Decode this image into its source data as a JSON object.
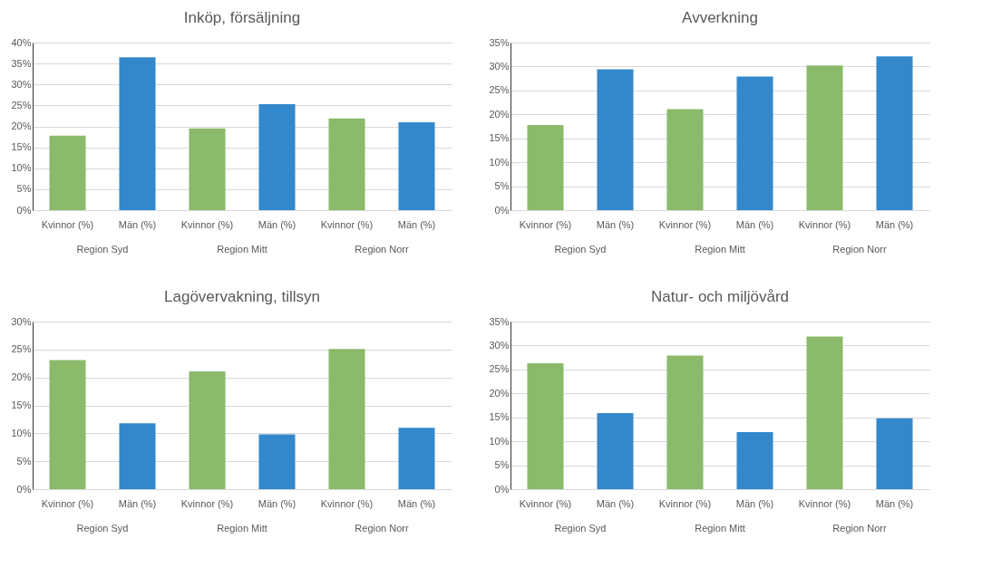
{
  "chart_data": [
    {
      "type": "bar",
      "title": "Inköp, försäljning",
      "categories": [
        "Kvinnor (%)",
        "Män (%)",
        "Kvinnor (%)",
        "Män (%)",
        "Kvinnor (%)",
        "Män (%)"
      ],
      "values": [
        17.8,
        36.5,
        19.5,
        25.3,
        21.9,
        21.0
      ],
      "colors": [
        "#8aba6a",
        "#3388cc",
        "#8aba6a",
        "#3388cc",
        "#8aba6a",
        "#3388cc"
      ],
      "ylim": [
        0,
        40
      ],
      "yticks": [
        {
          "value": 0,
          "label": "0%"
        },
        {
          "value": 5,
          "label": "5%"
        },
        {
          "value": 10,
          "label": "10%"
        },
        {
          "value": 15,
          "label": "15%"
        },
        {
          "value": 20,
          "label": "20%"
        },
        {
          "value": 25,
          "label": "25%"
        },
        {
          "value": 30,
          "label": "30%"
        },
        {
          "value": 35,
          "label": "35%"
        },
        {
          "value": 40,
          "label": "40%"
        }
      ],
      "grid": "y",
      "annotations": [
        "Region Syd",
        "Region Mitt",
        "Region Norr"
      ]
    },
    {
      "type": "bar",
      "title": "Avverkning",
      "categories": [
        "Kvinnor (%)",
        "Män (%)",
        "Kvinnor (%)",
        "Män (%)",
        "Kvinnor (%)",
        "Män (%)"
      ],
      "values": [
        17.8,
        29.4,
        21.1,
        27.9,
        30.2,
        32.1
      ],
      "colors": [
        "#8aba6a",
        "#3388cc",
        "#8aba6a",
        "#3388cc",
        "#8aba6a",
        "#3388cc"
      ],
      "ylim": [
        0,
        35
      ],
      "yticks": [
        {
          "value": 0,
          "label": "0%"
        },
        {
          "value": 5,
          "label": "5%"
        },
        {
          "value": 10,
          "label": "10%"
        },
        {
          "value": 15,
          "label": "15%"
        },
        {
          "value": 20,
          "label": "20%"
        },
        {
          "value": 25,
          "label": "25%"
        },
        {
          "value": 30,
          "label": "30%"
        },
        {
          "value": 35,
          "label": "35%"
        }
      ],
      "grid": "y",
      "annotations": [
        "Region Syd",
        "Region Mitt",
        "Region Norr"
      ]
    },
    {
      "type": "bar",
      "title": "Lagövervakning, tillsyn",
      "categories": [
        "Kvinnor (%)",
        "Män (%)",
        "Kvinnor (%)",
        "Män (%)",
        "Kvinnor (%)",
        "Män (%)"
      ],
      "values": [
        23.1,
        11.8,
        21.1,
        9.8,
        25.1,
        11.0
      ],
      "colors": [
        "#8aba6a",
        "#3388cc",
        "#8aba6a",
        "#3388cc",
        "#8aba6a",
        "#3388cc"
      ],
      "ylim": [
        0,
        30
      ],
      "yticks": [
        {
          "value": 0,
          "label": "0%"
        },
        {
          "value": 5,
          "label": "5%"
        },
        {
          "value": 10,
          "label": "10%"
        },
        {
          "value": 15,
          "label": "15%"
        },
        {
          "value": 20,
          "label": "20%"
        },
        {
          "value": 25,
          "label": "25%"
        },
        {
          "value": 30,
          "label": "30%"
        }
      ],
      "grid": "y",
      "annotations": [
        "Region Syd",
        "Region Mitt",
        "Region Norr"
      ]
    },
    {
      "type": "bar",
      "title": "Natur- och miljövård",
      "categories": [
        "Kvinnor (%)",
        "Män (%)",
        "Kvinnor (%)",
        "Män (%)",
        "Kvinnor (%)",
        "Män (%)"
      ],
      "values": [
        26.3,
        15.9,
        27.9,
        11.9,
        31.9,
        14.8
      ],
      "colors": [
        "#8aba6a",
        "#3388cc",
        "#8aba6a",
        "#3388cc",
        "#8aba6a",
        "#3388cc"
      ],
      "ylim": [
        0,
        35
      ],
      "yticks": [
        {
          "value": 0,
          "label": "0%"
        },
        {
          "value": 5,
          "label": "5%"
        },
        {
          "value": 10,
          "label": "10%"
        },
        {
          "value": 15,
          "label": "15%"
        },
        {
          "value": 20,
          "label": "20%"
        },
        {
          "value": 25,
          "label": "25%"
        },
        {
          "value": 30,
          "label": "30%"
        },
        {
          "value": 35,
          "label": "35%"
        }
      ],
      "grid": "y",
      "annotations": [
        "Region Syd",
        "Region Mitt",
        "Region Norr"
      ]
    }
  ]
}
